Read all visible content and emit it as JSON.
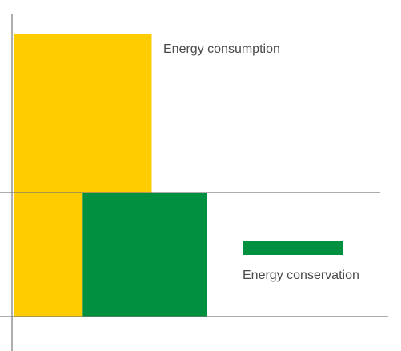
{
  "chart_data": {
    "type": "bar",
    "title": "",
    "xlabel": "",
    "ylabel": "",
    "axes": {
      "grid": false,
      "tick_labels": false
    },
    "series": [
      {
        "key": "consumption",
        "name": "Energy consumption",
        "color": "#FFCC00",
        "segments": [
          {
            "x0": 0,
            "x1": 1.0,
            "y0": 0,
            "y1": 1.0
          },
          {
            "x0": 0,
            "x1": 0.5,
            "y0": -1.0,
            "y1": 0
          }
        ],
        "label_anchor": "bar-right-top"
      },
      {
        "key": "conservation",
        "name": "Energy conservation",
        "color": "#009040",
        "segments": [
          {
            "x0": 0.5,
            "x1": 1.4,
            "y0": -1.0,
            "y1": 0
          }
        ],
        "label_anchor": "legend-swatch-right"
      }
    ],
    "xlim": [
      0,
      2.8
    ],
    "ylim": [
      -1.0,
      1.0
    ]
  }
}
